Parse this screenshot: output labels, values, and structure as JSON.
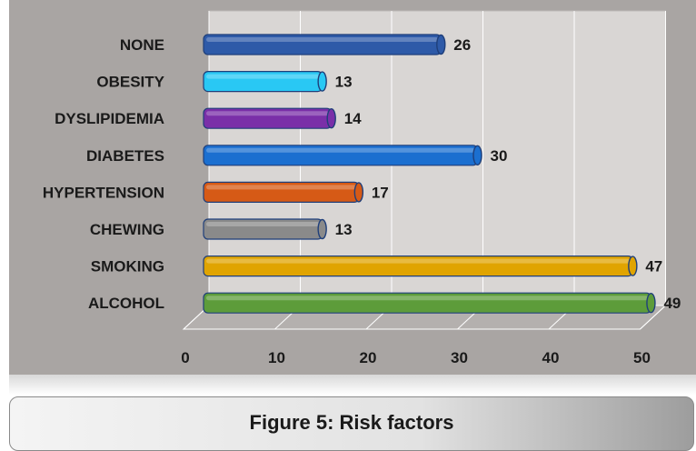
{
  "chart_data": {
    "type": "bar",
    "orientation": "horizontal",
    "categories": [
      "NONE",
      "OBESITY",
      "DYSLIPIDEMIA",
      "DIABETES",
      "HYPERTENSION",
      "CHEWING",
      "SMOKING",
      "ALCOHOL"
    ],
    "values": [
      26,
      13,
      14,
      30,
      17,
      13,
      47,
      49
    ],
    "data_labels": [
      "26",
      "13",
      "14",
      "30",
      "17",
      "13",
      "47",
      "49"
    ],
    "x_ticks": [
      0,
      10,
      20,
      30,
      40,
      50
    ],
    "x_tick_labels": [
      "0",
      "10",
      "20",
      "30",
      "40",
      "50"
    ],
    "xlim": [
      0,
      50
    ],
    "grid": true,
    "legend": "none",
    "title": "",
    "xlabel": "",
    "ylabel": "",
    "colors": [
      "#2e5aa8",
      "#29c8f4",
      "#7a2fa8",
      "#1b6fd0",
      "#d65a16",
      "#8a8a8a",
      "#e0a400",
      "#5d9c3a"
    ]
  },
  "caption": {
    "text": "Figure 5: Risk factors"
  }
}
